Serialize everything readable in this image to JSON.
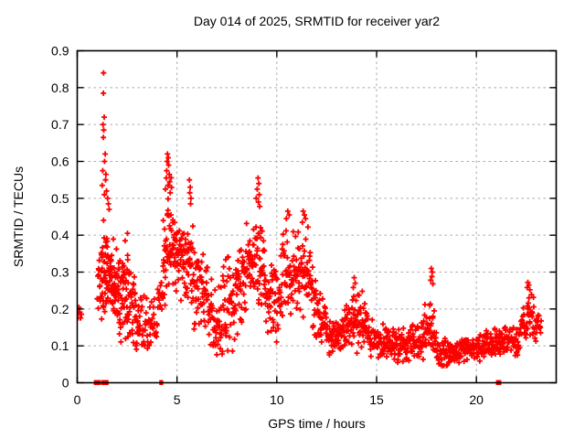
{
  "page": {
    "background": "#ffffff"
  },
  "chart_data": {
    "type": "scatter",
    "title": "Day 014 of 2025, SRMTID for receiver yar2",
    "xlabel": "GPS time / hours",
    "ylabel": "SRMTID / TECUs",
    "xlim": [
      0,
      24
    ],
    "ylim": [
      0,
      0.9
    ],
    "xticks": [
      "0",
      "5",
      "10",
      "15",
      "20"
    ],
    "xtick_values": [
      0,
      5,
      10,
      15,
      20
    ],
    "yticks": [
      "0",
      "0.1",
      "0.2",
      "0.3",
      "0.4",
      "0.5",
      "0.6",
      "0.7",
      "0.8",
      "0.9"
    ],
    "ytick_values": [
      0,
      0.1,
      0.2,
      0.3,
      0.4,
      0.5,
      0.6,
      0.7,
      0.8,
      0.9
    ],
    "grid": "dotted",
    "legend_position": "none",
    "marker": "plus",
    "marker_color": "#ff0000",
    "grid_color": "#a8a8a8",
    "axis_color": "#000000",
    "envelope_bands": [
      [
        0.02,
        0.22,
        0.15,
        0.16,
        0.21,
        0.2,
        7
      ],
      [
        1.0,
        1.2,
        0.17,
        0.16,
        0.28,
        0.42,
        14
      ],
      [
        1.2,
        1.7,
        0.15,
        0.16,
        0.47,
        0.44,
        60
      ],
      [
        1.7,
        2.1,
        0.14,
        0.13,
        0.42,
        0.38,
        48
      ],
      [
        2.1,
        2.6,
        0.11,
        0.1,
        0.38,
        0.39,
        50
      ],
      [
        2.6,
        3.1,
        0.08,
        0.07,
        0.38,
        0.27,
        42
      ],
      [
        3.1,
        3.7,
        0.06,
        0.08,
        0.27,
        0.22,
        34
      ],
      [
        3.7,
        4.3,
        0.08,
        0.16,
        0.23,
        0.32,
        30
      ],
      [
        4.3,
        4.8,
        0.18,
        0.24,
        0.52,
        0.6,
        46
      ],
      [
        4.8,
        5.3,
        0.22,
        0.2,
        0.5,
        0.43,
        46
      ],
      [
        5.3,
        5.8,
        0.2,
        0.2,
        0.43,
        0.47,
        42
      ],
      [
        5.8,
        6.6,
        0.14,
        0.13,
        0.38,
        0.34,
        60
      ],
      [
        6.6,
        7.2,
        0.05,
        0.06,
        0.3,
        0.28,
        44
      ],
      [
        7.2,
        7.9,
        0.05,
        0.06,
        0.36,
        0.33,
        50
      ],
      [
        7.9,
        8.4,
        0.12,
        0.15,
        0.4,
        0.42,
        40
      ],
      [
        8.4,
        9.0,
        0.18,
        0.2,
        0.45,
        0.47,
        46
      ],
      [
        9.0,
        9.4,
        0.2,
        0.18,
        0.48,
        0.4,
        32
      ],
      [
        9.4,
        10.2,
        0.1,
        0.1,
        0.36,
        0.3,
        56
      ],
      [
        10.2,
        11.0,
        0.14,
        0.16,
        0.44,
        0.42,
        56
      ],
      [
        11.0,
        11.8,
        0.15,
        0.15,
        0.44,
        0.42,
        58
      ],
      [
        11.8,
        12.5,
        0.1,
        0.08,
        0.32,
        0.22,
        48
      ],
      [
        12.5,
        13.4,
        0.07,
        0.08,
        0.19,
        0.18,
        62
      ],
      [
        13.4,
        14.0,
        0.09,
        0.1,
        0.22,
        0.26,
        44
      ],
      [
        14.0,
        14.6,
        0.08,
        0.08,
        0.26,
        0.2,
        42
      ],
      [
        14.6,
        15.6,
        0.06,
        0.06,
        0.18,
        0.16,
        66
      ],
      [
        15.6,
        16.5,
        0.04,
        0.05,
        0.16,
        0.15,
        58
      ],
      [
        16.5,
        17.4,
        0.05,
        0.06,
        0.16,
        0.18,
        58
      ],
      [
        17.4,
        18.0,
        0.06,
        0.06,
        0.26,
        0.2,
        42
      ],
      [
        18.0,
        19.2,
        0.04,
        0.04,
        0.12,
        0.12,
        76
      ],
      [
        19.2,
        20.2,
        0.05,
        0.05,
        0.14,
        0.14,
        66
      ],
      [
        20.2,
        21.2,
        0.06,
        0.06,
        0.15,
        0.15,
        62
      ],
      [
        21.2,
        22.2,
        0.07,
        0.07,
        0.17,
        0.16,
        62
      ],
      [
        22.2,
        22.9,
        0.09,
        0.11,
        0.21,
        0.27,
        44
      ],
      [
        22.9,
        23.25,
        0.1,
        0.12,
        0.22,
        0.18,
        18
      ]
    ],
    "peak_points": [
      [
        1.32,
        0.84
      ],
      [
        1.31,
        0.785
      ],
      [
        1.35,
        0.72
      ],
      [
        1.29,
        0.7
      ],
      [
        1.33,
        0.685
      ],
      [
        1.31,
        0.665
      ],
      [
        1.4,
        0.62
      ],
      [
        1.37,
        0.6
      ],
      [
        1.28,
        0.575
      ],
      [
        1.44,
        0.565
      ],
      [
        1.42,
        0.55
      ],
      [
        1.25,
        0.535
      ],
      [
        1.47,
        0.52
      ],
      [
        1.36,
        0.51
      ],
      [
        1.52,
        0.5
      ],
      [
        1.56,
        0.485
      ],
      [
        1.6,
        0.47
      ],
      [
        2.52,
        0.405
      ],
      [
        2.4,
        0.385
      ],
      [
        4.52,
        0.62
      ],
      [
        4.56,
        0.61
      ],
      [
        4.5,
        0.6
      ],
      [
        4.58,
        0.59
      ],
      [
        4.48,
        0.575
      ],
      [
        4.61,
        0.565
      ],
      [
        4.46,
        0.555
      ],
      [
        4.63,
        0.545
      ],
      [
        4.55,
        0.535
      ],
      [
        4.42,
        0.525
      ],
      [
        4.66,
        0.515
      ],
      [
        5.62,
        0.55
      ],
      [
        5.66,
        0.53
      ],
      [
        5.64,
        0.515
      ],
      [
        5.7,
        0.5
      ],
      [
        5.68,
        0.485
      ],
      [
        9.06,
        0.555
      ],
      [
        9.1,
        0.54
      ],
      [
        9.02,
        0.525
      ],
      [
        9.12,
        0.51
      ],
      [
        8.97,
        0.5
      ],
      [
        9.08,
        0.49
      ],
      [
        9.14,
        0.478
      ],
      [
        10.55,
        0.465
      ],
      [
        10.62,
        0.455
      ],
      [
        10.48,
        0.445
      ],
      [
        11.32,
        0.465
      ],
      [
        11.38,
        0.455
      ],
      [
        11.44,
        0.445
      ],
      [
        11.28,
        0.435
      ],
      [
        13.88,
        0.285
      ],
      [
        13.93,
        0.27
      ],
      [
        13.83,
        0.258
      ],
      [
        14.28,
        0.248
      ],
      [
        17.74,
        0.31
      ],
      [
        17.79,
        0.3
      ],
      [
        17.77,
        0.288
      ],
      [
        17.71,
        0.278
      ],
      [
        17.82,
        0.268
      ],
      [
        22.58,
        0.272
      ],
      [
        22.63,
        0.265
      ],
      [
        22.55,
        0.258
      ],
      [
        22.68,
        0.252
      ]
    ],
    "zero_points_x": [
      0.9,
      0.94,
      0.98,
      1.02,
      1.06,
      1.12,
      1.28,
      1.4,
      1.5,
      4.18,
      4.24,
      21.05,
      21.18
    ]
  }
}
